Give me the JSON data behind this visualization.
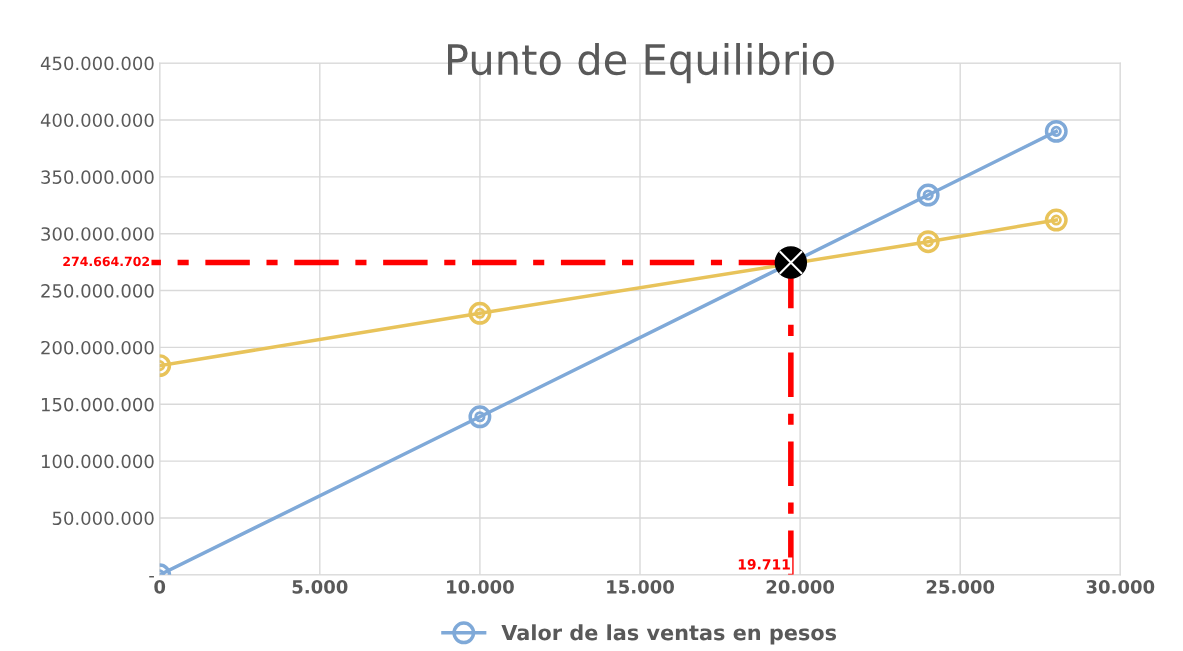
{
  "chart_data": {
    "type": "line",
    "title": "Punto de Equilibrio",
    "x": [
      0,
      10000,
      24000,
      28000
    ],
    "series": [
      {
        "name": "Valor de las ventas en pesos",
        "color": "#7fa9d8",
        "marker": "circle",
        "values": [
          0,
          139000000,
          334000000,
          390000000
        ]
      },
      {
        "color": "#e8c35a",
        "marker": "circle",
        "values": [
          184000000,
          230000000,
          293000000,
          312000000
        ]
      },
      {
        "type": "scatter",
        "color": "#000000",
        "marker": "circle",
        "x": [
          19711
        ],
        "values": [
          274664702
        ]
      }
    ],
    "xlim": [
      0,
      30000
    ],
    "xticks": [
      {
        "value": 0,
        "label": "0"
      },
      {
        "value": 5000,
        "label": "5.000"
      },
      {
        "value": 10000,
        "label": "10.000"
      },
      {
        "value": 15000,
        "label": "15.000"
      },
      {
        "value": 20000,
        "label": "20.000"
      },
      {
        "value": 25000,
        "label": "25.000"
      },
      {
        "value": 30000,
        "label": "30.000"
      }
    ],
    "ylim": [
      0,
      450000000
    ],
    "yticks": [
      {
        "value": 0,
        "label": "-"
      },
      {
        "value": 50000000,
        "label": "50.000.000"
      },
      {
        "value": 100000000,
        "label": "100.000.000"
      },
      {
        "value": 150000000,
        "label": "150.000.000"
      },
      {
        "value": 200000000,
        "label": "200.000.000"
      },
      {
        "value": 250000000,
        "label": "250.000.000"
      },
      {
        "value": 300000000,
        "label": "300.000.000"
      },
      {
        "value": 350000000,
        "label": "350.000.000"
      },
      {
        "value": 400000000,
        "label": "400.000.000"
      },
      {
        "value": 450000000,
        "label": "450.000.000"
      }
    ],
    "ref_lines": [
      {
        "axis": "y",
        "value": 274664702,
        "label": "274.664.702",
        "color": "#ff0000",
        "line_style": "dashdot"
      },
      {
        "axis": "x",
        "value": 19711,
        "label": "19.711",
        "color": "#ff0000",
        "line_style": "dashdot"
      }
    ],
    "grid": true,
    "legend": "bottom"
  }
}
